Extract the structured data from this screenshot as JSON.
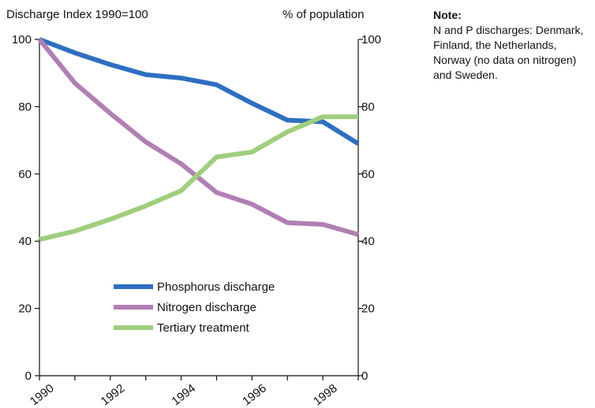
{
  "note": {
    "heading": "Note:",
    "text": "N and P discharges: Denmark, Finland, the Netherlands, Norway (no data on nitrogen) and Sweden."
  },
  "chart_data": {
    "type": "line",
    "title": "",
    "y_left_label": "Discharge Index 1990=100",
    "y_right_label": "% of population",
    "x": [
      1990,
      1991,
      1992,
      1993,
      1994,
      1995,
      1996,
      1997,
      1998,
      1999
    ],
    "x_tick_labels": [
      "1990",
      "1992",
      "1994",
      "1996",
      "1998"
    ],
    "x_tick_values": [
      1990,
      1992,
      1994,
      1996,
      1998
    ],
    "y_left_ticks": [
      "0",
      "20",
      "40",
      "60",
      "80",
      "100"
    ],
    "y_right_ticks": [
      "0",
      "20",
      "40",
      "60",
      "80",
      "100"
    ],
    "ylim": [
      0,
      100
    ],
    "xlim": [
      1990,
      1999
    ],
    "grid": false,
    "legend_position": "bottom-center",
    "series": [
      {
        "name": "Phosphorus discharge",
        "axis": "left",
        "color": "#2e6fc2",
        "values": [
          100,
          96,
          92.5,
          89.5,
          88.5,
          86.5,
          81,
          76,
          75.5,
          69
        ]
      },
      {
        "name": "Nitrogen discharge",
        "axis": "left",
        "color": "#b17fb3",
        "values": [
          100,
          87,
          78,
          69.5,
          63,
          54.5,
          51,
          45.5,
          45,
          42
        ]
      },
      {
        "name": "Tertiary treatment",
        "axis": "right",
        "color": "#9fce7d",
        "values": [
          40.5,
          43,
          46.5,
          50.5,
          55,
          65,
          66.5,
          72.5,
          77,
          77
        ]
      }
    ]
  }
}
